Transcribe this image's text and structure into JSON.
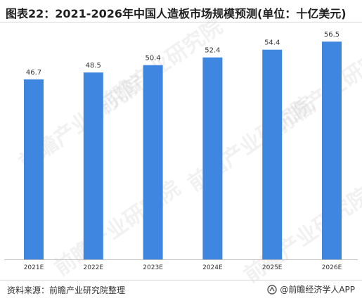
{
  "title": "图表22：2021-2026年中国人造板市场规模预测(单位：十亿美元)",
  "footer": {
    "source": "资料来源：前瞻产业研究院整理",
    "brand": "@前瞻经济学人APP"
  },
  "watermark": "前瞻产业研究院",
  "colors": {
    "bar": "#3f86e0",
    "axis": "#bfbfbf",
    "label": "#333333"
  },
  "chart_data": {
    "type": "bar",
    "categories": [
      "2021E",
      "2022E",
      "2023E",
      "2024E",
      "2025E",
      "2026E"
    ],
    "values": [
      46.7,
      48.5,
      50.4,
      52.4,
      54.4,
      56.5
    ],
    "title": "图表22：2021-2026年中国人造板市场规模预测(单位：十亿美元)",
    "xlabel": "",
    "ylabel": "",
    "ylim": [
      0,
      60
    ],
    "grid": false,
    "legend": "none"
  }
}
